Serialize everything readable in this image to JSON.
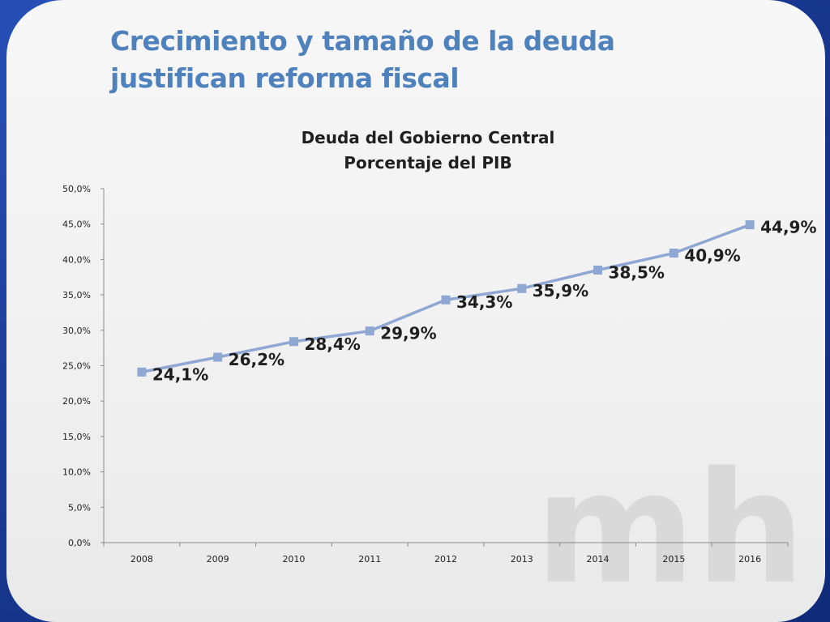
{
  "slide": {
    "title": "Crecimiento y tamaño  de la deuda justifican reforma fiscal",
    "watermark_text": "mh",
    "colors": {
      "title": "#4f81bd",
      "frame": "#1d3f9c",
      "series": "#8ea7d3",
      "highlight": "#ff0000"
    }
  },
  "chart_data": {
    "type": "line",
    "title": "Deuda del Gobierno Central",
    "subtitle": "Porcentaje del PIB",
    "categories": [
      "2008",
      "2009",
      "2010",
      "2011",
      "2012",
      "2013",
      "2014",
      "2015",
      "2016"
    ],
    "series": [
      {
        "values": [
          24.1,
          26.2,
          28.4,
          29.9,
          34.3,
          35.9,
          38.5,
          40.9,
          44.9
        ],
        "labels": [
          "24,1%",
          "26,2%",
          "28,4%",
          "29,9%",
          "34,3%",
          "35,9%",
          "38,5%",
          "40,9%",
          "44,9%"
        ],
        "highlight_index": 8
      }
    ],
    "ylim": [
      0,
      50
    ],
    "yticks": [
      "0,0%",
      "5,0%",
      "10,0%",
      "15,0%",
      "20,0%",
      "25,0%",
      "30,0%",
      "35,0%",
      "40,0%",
      "45,0%",
      "50,0%"
    ],
    "grid": false,
    "legend": "none"
  }
}
